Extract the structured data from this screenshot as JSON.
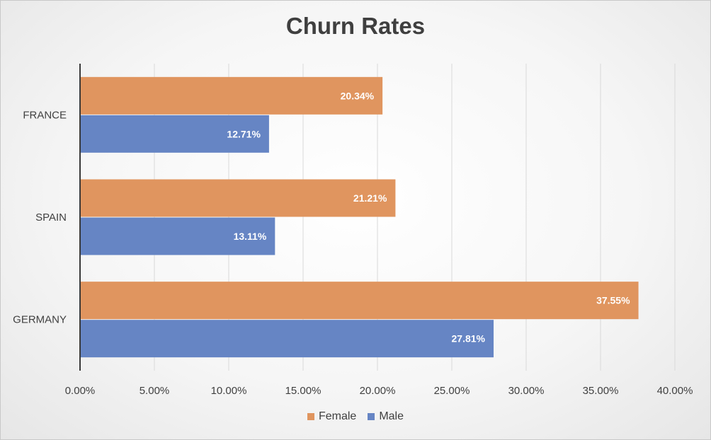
{
  "chart_data": {
    "type": "bar",
    "orientation": "horizontal",
    "title": "Churn Rates",
    "categories": [
      "FRANCE",
      "SPAIN",
      "GERMANY"
    ],
    "series": [
      {
        "name": "Female",
        "color": "#E0955F",
        "values": [
          20.34,
          21.21,
          37.55
        ],
        "labels": [
          "20.34%",
          "21.21%",
          "37.55%"
        ]
      },
      {
        "name": "Male",
        "color": "#6685C4",
        "values": [
          12.71,
          13.11,
          27.81
        ],
        "labels": [
          "12.71%",
          "13.11%",
          "27.81%"
        ]
      }
    ],
    "xlim": [
      0,
      40
    ],
    "xticks": [
      0,
      5,
      10,
      15,
      20,
      25,
      30,
      35,
      40
    ],
    "xtick_labels": [
      "0.00%",
      "5.00%",
      "10.00%",
      "15.00%",
      "20.00%",
      "25.00%",
      "30.00%",
      "35.00%",
      "40.00%"
    ],
    "grid": true,
    "legend": "bottom-center"
  }
}
